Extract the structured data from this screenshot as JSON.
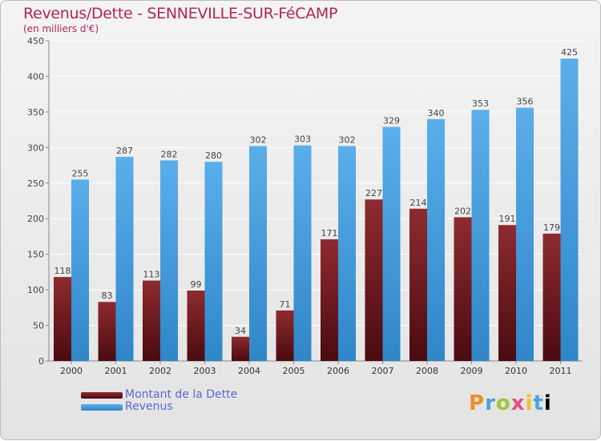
{
  "title": "Revenus/Dette - SENNEVILLE-SUR-FéCAMP",
  "subtitle": "(en milliers d'€)",
  "brand": "Proxiti",
  "colors": {
    "dette": "#7a1f25",
    "revenus": "#4a9fe0",
    "title": "#b3245a"
  },
  "chart_data": {
    "type": "bar",
    "categories": [
      "2000",
      "2001",
      "2002",
      "2003",
      "2004",
      "2005",
      "2006",
      "2007",
      "2008",
      "2009",
      "2010",
      "2011"
    ],
    "series": [
      {
        "name": "Montant de la Dette",
        "values": [
          118,
          83,
          113,
          99,
          34,
          71,
          171,
          227,
          214,
          202,
          191,
          179
        ]
      },
      {
        "name": "Revenus",
        "values": [
          255,
          287,
          282,
          280,
          302,
          303,
          302,
          329,
          340,
          353,
          356,
          425
        ]
      }
    ],
    "ylim": [
      0,
      450
    ],
    "yticks": [
      0,
      50,
      100,
      150,
      200,
      250,
      300,
      350,
      400,
      450
    ],
    "grid": true,
    "legend_position": "bottom-left"
  }
}
